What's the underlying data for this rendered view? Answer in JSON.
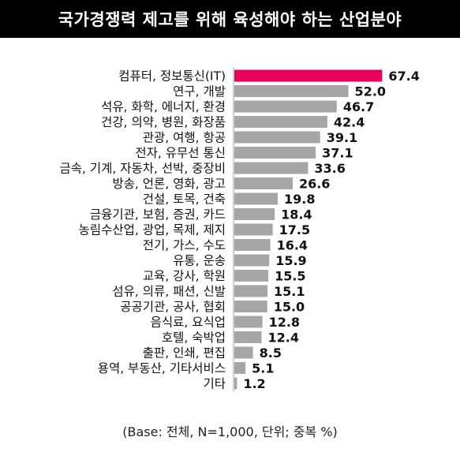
{
  "title": "국가경쟁력 제고를 위해 육성해야 하는 산업분야",
  "footnote": "(Base: 전체, N=1,000, 단위; 중복 %)",
  "colors": {
    "title_background": "#000000",
    "title_text": "#ffffff",
    "highlight_bar": "#e6005c",
    "default_bar": "#a6a6a6",
    "axis_line": "#999999"
  },
  "chart_data": {
    "type": "bar",
    "orientation": "horizontal",
    "title": "국가경쟁력 제고를 위해 육성해야 하는 산업분야",
    "xlabel": "",
    "ylabel": "",
    "unit": "%",
    "grid": false,
    "legend": "none",
    "highlight_index": 0,
    "categories": [
      "컴퓨터, 정보통신(IT)",
      "연구, 개발",
      "석유, 화학, 에너지, 환경",
      "건강, 의약, 병원, 화장품",
      "관광, 여행, 항공",
      "전자, 유무선 통신",
      "금속, 기계, 자동차, 선박, 중장비",
      "방송, 언론, 영화, 광고",
      "건설, 토목, 건축",
      "금융기관, 보험, 증권, 카드",
      "농림수산업, 광업, 목제, 제지",
      "전기, 가스, 수도",
      "유통, 운송",
      "교육, 강사, 학원",
      "섬유, 의류, 패션, 신발",
      "공공기관, 공사, 협회",
      "음식료, 요식업",
      "호텔, 숙박업",
      "출판, 인쇄, 편집",
      "용역, 부동산, 기타서비스",
      "기타"
    ],
    "values": [
      67.4,
      52.0,
      46.7,
      42.4,
      39.1,
      37.1,
      33.6,
      26.6,
      19.8,
      18.4,
      17.5,
      16.4,
      15.9,
      15.5,
      15.1,
      15.0,
      12.8,
      12.4,
      8.5,
      5.1,
      1.2
    ],
    "value_labels": [
      "67.4",
      "52.0",
      "46.7",
      "42.4",
      "39.1",
      "37.1",
      "33.6",
      "26.6",
      "19.8",
      "18.4",
      "17.5",
      "16.4",
      "15.9",
      "15.5",
      "15.1",
      "15.0",
      "12.8",
      "12.4",
      "8.5",
      "5.1",
      "1.2"
    ],
    "xlim": [
      0,
      70
    ]
  }
}
